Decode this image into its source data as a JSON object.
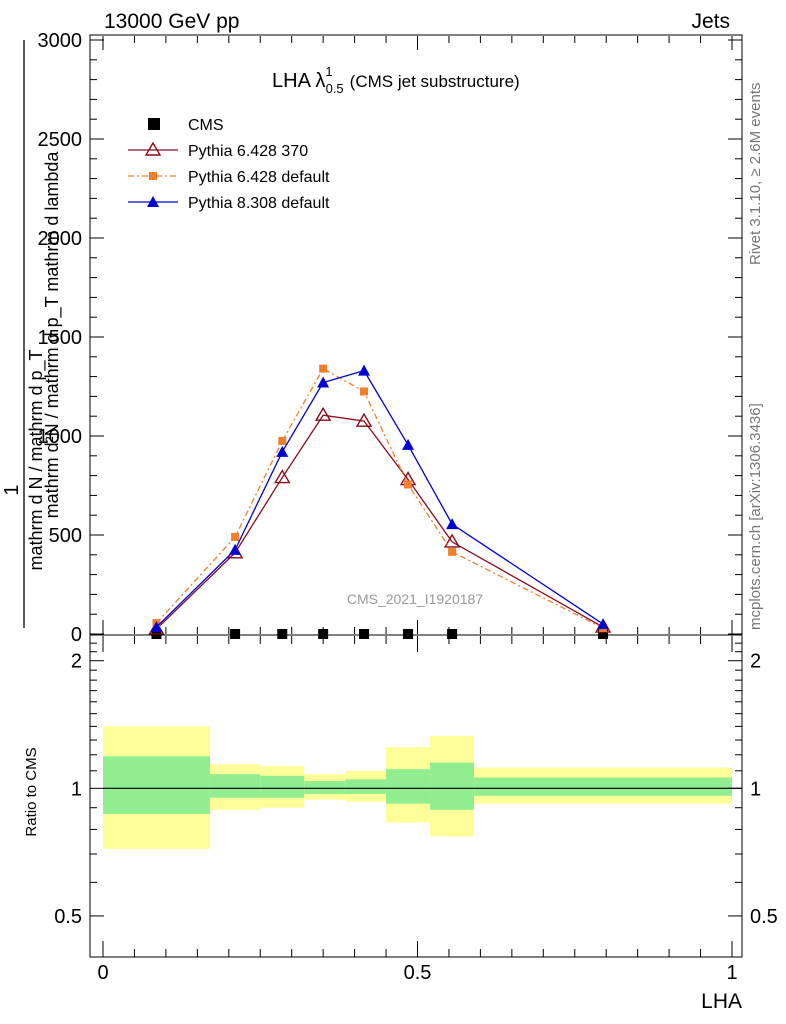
{
  "header": {
    "left_label": "13000 GeV pp",
    "right_label": "Jets"
  },
  "side_text": {
    "top": "Rivet 3.1.10, ≥ 2.6M events",
    "bottom": "mcplots.cern.ch [arXiv:1306.3436]"
  },
  "watermark": "CMS_2021_I1920187",
  "title": {
    "main": "LHA λ",
    "sup": "1",
    "sub": "0.5",
    "suffix": "(CMS jet substructure)"
  },
  "axes": {
    "y_label_numerator": "1",
    "y_label_denominator": "mathrm d N / mathrm d p_T",
    "y_label_right": "mathrm d²N / mathrm d p_T mathrm d lambda",
    "ratio_ylabel": "Ratio to CMS",
    "xlabel": "LHA"
  },
  "legend": [
    {
      "label": "CMS",
      "color": "#000000",
      "marker": "square",
      "line": "none"
    },
    {
      "label": "Pythia 6.428 370",
      "color": "#8b0a1a",
      "marker": "open-triangle",
      "line": "solid"
    },
    {
      "label": "Pythia 6.428 default",
      "color": "#f07f2c",
      "marker": "square",
      "line": "dashdot"
    },
    {
      "label": "Pythia 8.308 default",
      "color": "#0000d0",
      "marker": "triangle",
      "line": "solid"
    }
  ],
  "chart_data": {
    "type": "line",
    "x_range": [
      0,
      1
    ],
    "main_ylim": [
      0,
      3000
    ],
    "main_yticks": [
      0,
      500,
      1000,
      1500,
      2000,
      2500,
      3000
    ],
    "main_ytick_labels": [
      "0",
      "500",
      "1000",
      "1500",
      "2000",
      "2500",
      "3000"
    ],
    "xticks": [
      0,
      0.5,
      1
    ],
    "xtick_labels": [
      "0",
      "0.5",
      "1"
    ],
    "series": [
      {
        "name": "CMS",
        "x": [
          0.085,
          0.21,
          0.285,
          0.35,
          0.415,
          0.485,
          0.555,
          0.795
        ],
        "y": [
          0,
          0,
          0,
          0,
          0,
          0,
          0,
          0
        ]
      },
      {
        "name": "Pythia 6.428 370",
        "x": [
          0.085,
          0.21,
          0.285,
          0.35,
          0.415,
          0.485,
          0.555,
          0.795
        ],
        "y": [
          25,
          410,
          790,
          1105,
          1075,
          780,
          465,
          35
        ]
      },
      {
        "name": "Pythia 6.428 default",
        "x": [
          0.085,
          0.21,
          0.285,
          0.35,
          0.415,
          0.485,
          0.555,
          0.795
        ],
        "y": [
          55,
          490,
          975,
          1340,
          1225,
          755,
          415,
          30
        ]
      },
      {
        "name": "Pythia 8.308 default",
        "x": [
          0.085,
          0.21,
          0.285,
          0.35,
          0.415,
          0.485,
          0.555,
          0.795
        ],
        "y": [
          35,
          425,
          920,
          1270,
          1330,
          955,
          555,
          50
        ]
      }
    ],
    "ratio": {
      "ylim": [
        0.4,
        2.3
      ],
      "log": true,
      "yticks": [
        0.5,
        1,
        2
      ],
      "ytick_labels": [
        "0.5",
        "1",
        "2"
      ],
      "reference": 1,
      "bands": [
        {
          "x0": 0.0,
          "x1": 0.17,
          "y1lo": 0.87,
          "y1hi": 1.19,
          "y2lo": 0.72,
          "y2hi": 1.4
        },
        {
          "x0": 0.17,
          "x1": 0.25,
          "y1lo": 0.95,
          "y1hi": 1.08,
          "y2lo": 0.89,
          "y2hi": 1.14
        },
        {
          "x0": 0.25,
          "x1": 0.32,
          "y1lo": 0.95,
          "y1hi": 1.07,
          "y2lo": 0.9,
          "y2hi": 1.13
        },
        {
          "x0": 0.32,
          "x1": 0.385,
          "y1lo": 0.97,
          "y1hi": 1.04,
          "y2lo": 0.94,
          "y2hi": 1.08
        },
        {
          "x0": 0.385,
          "x1": 0.45,
          "y1lo": 0.97,
          "y1hi": 1.05,
          "y2lo": 0.93,
          "y2hi": 1.1
        },
        {
          "x0": 0.45,
          "x1": 0.52,
          "y1lo": 0.92,
          "y1hi": 1.11,
          "y2lo": 0.83,
          "y2hi": 1.25
        },
        {
          "x0": 0.52,
          "x1": 0.59,
          "y1lo": 0.89,
          "y1hi": 1.15,
          "y2lo": 0.77,
          "y2hi": 1.33
        },
        {
          "x0": 0.59,
          "x1": 1.0,
          "y1lo": 0.96,
          "y1hi": 1.06,
          "y2lo": 0.92,
          "y2hi": 1.12
        }
      ],
      "band_colors": {
        "inner": "#90ee90",
        "outer": "#ffff99"
      }
    }
  }
}
